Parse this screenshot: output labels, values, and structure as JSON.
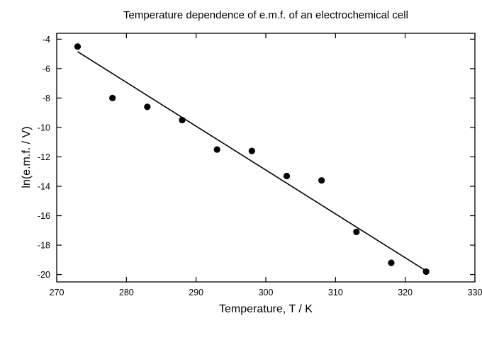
{
  "chart_data": {
    "type": "scatter",
    "title": "Temperature dependence of e.m.f. of an electrochemical cell",
    "xlabel": "Temperature, T / K",
    "ylabel": "ln(e.m.f. / V)",
    "xlim": [
      270,
      330
    ],
    "ylim": [
      -20.5,
      -3.6
    ],
    "xticks": [
      270,
      280,
      290,
      300,
      310,
      320,
      330
    ],
    "yticks": [
      -4,
      -6,
      -8,
      -10,
      -12,
      -14,
      -16,
      -18,
      -20
    ],
    "grid": false,
    "legend": "none",
    "series": [
      {
        "type": "scatter",
        "marker": "circle",
        "color": "#000000",
        "x": [
          273,
          278,
          283,
          288,
          293,
          298,
          303,
          308,
          313,
          318,
          323
        ],
        "y": [
          -4.5,
          -8.0,
          -8.6,
          -9.5,
          -11.5,
          -11.6,
          -13.3,
          -13.6,
          -17.1,
          -19.2,
          -19.8
        ]
      },
      {
        "type": "line",
        "color": "#000000",
        "x": [
          273,
          323
        ],
        "y": [
          -4.85,
          -19.75
        ]
      }
    ]
  }
}
